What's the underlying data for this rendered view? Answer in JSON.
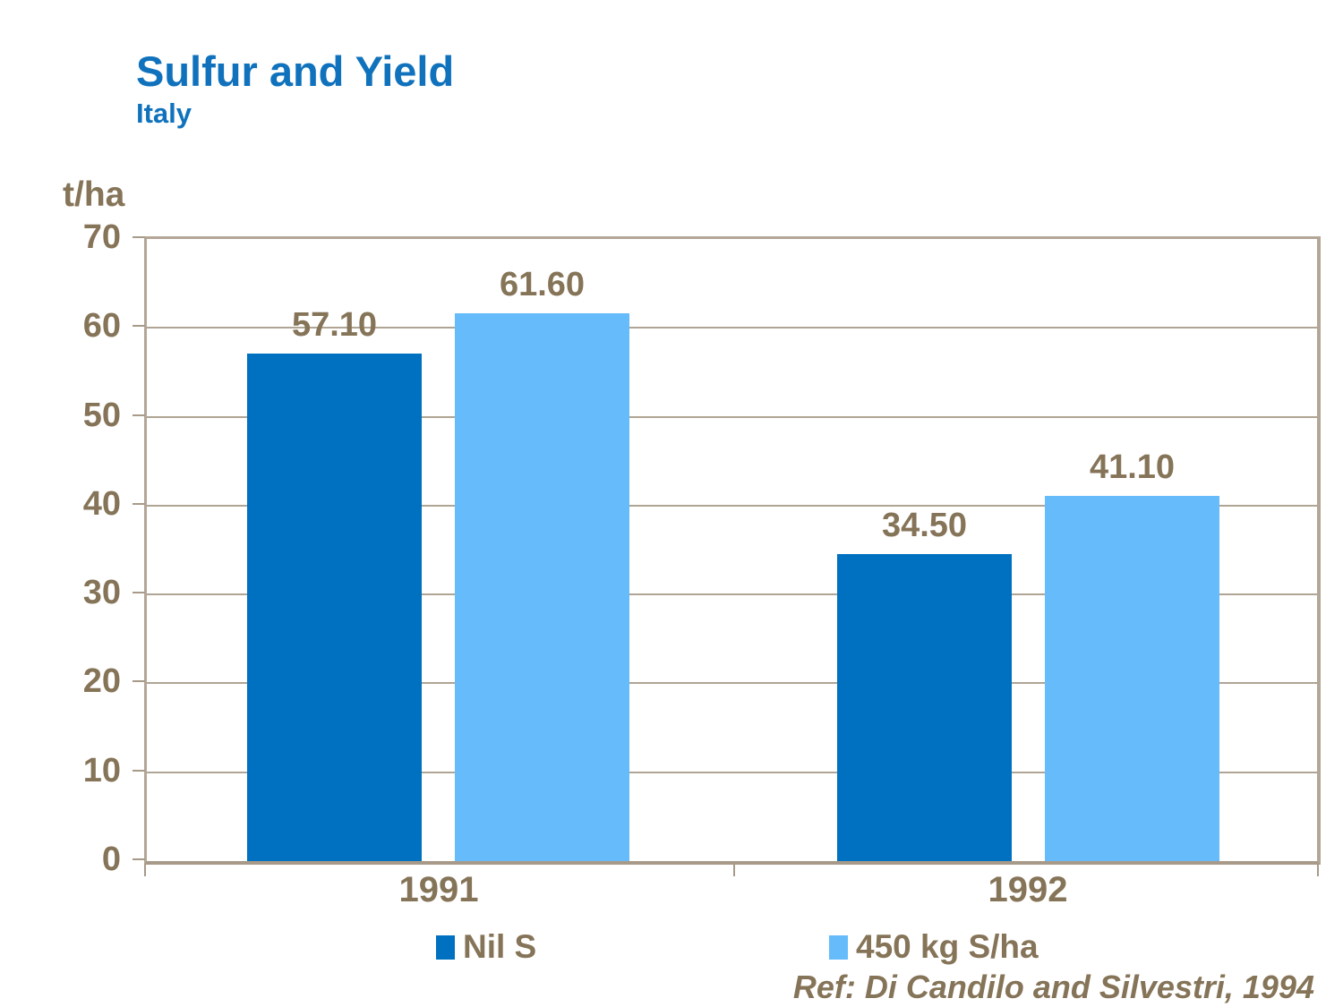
{
  "header": {
    "title": "Sulfur and Yield",
    "subtitle": "Italy"
  },
  "chart_data": {
    "type": "bar",
    "title": "Sulfur and Yield",
    "subtitle": "Italy",
    "ylabel": "t/ha",
    "xlabel": "",
    "categories": [
      "1991",
      "1992"
    ],
    "series": [
      {
        "name": "Nil S",
        "color": "#0071c0",
        "values": [
          57.1,
          34.5
        ],
        "labels": [
          "57.10",
          "34.50"
        ]
      },
      {
        "name": "450 kg S/ha",
        "color": "#66bbfb",
        "values": [
          61.6,
          41.1
        ],
        "labels": [
          "61.60",
          "41.10"
        ]
      }
    ],
    "ylim": [
      0,
      70
    ],
    "ytick_step": 10,
    "ytick_labels": [
      "70",
      "60",
      "50",
      "40",
      "30",
      "20",
      "10",
      "0"
    ],
    "grid": true,
    "legend_position": "bottom"
  },
  "footer": {
    "reference": "Ref: Di Candilo and Silvestri, 1994"
  },
  "colors": {
    "title_blue": "#1072bc",
    "text_brown": "#857458",
    "bar_dark_blue": "#0071c0",
    "bar_light_blue": "#66bbfb",
    "gridline": "#b0a494",
    "frame_border": "#b3a697",
    "background": "#ffffff"
  }
}
